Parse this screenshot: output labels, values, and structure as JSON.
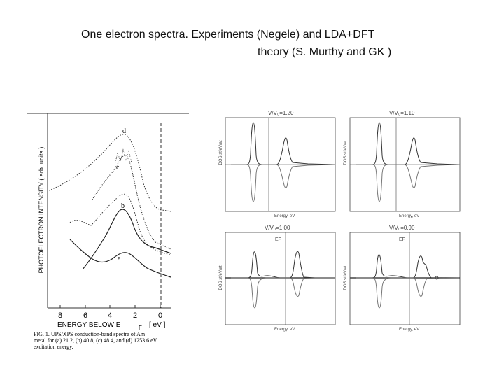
{
  "slide": {
    "title_line1": "One electron spectra. Experiments (Negele) and LDA+DFT",
    "title_line2": "theory  (S. Murthy and GK )"
  },
  "experiment": {
    "ylabel": "PHOTOELECTRON  INTENSITY  ( arb. units )",
    "xticks": [
      "8",
      "6",
      "4",
      "2",
      "0"
    ],
    "xlabel_left": "ENERGY   BELOW   E",
    "xlabel_sub": "F",
    "xlabel_unit": "[ eV ]",
    "curve_labels": [
      "d",
      "c",
      "b",
      "a"
    ],
    "caption_line1": "FIG. 1.  UPS/XPS conduction-band spectra of Am",
    "caption_line2": "metal for (a) 21.2, (b) 40.8, (c) 48.4, and (d) 1253.6 eV",
    "caption_line3": "excitation energy."
  },
  "theory": {
    "panel_titles": [
      "V/V₀=1.20",
      "V/V₀=1.10",
      "V/V₀=1.00",
      "V/V₀=0.90"
    ],
    "ylabel_top": "DOS st/eV/at",
    "ylabel_bottom": "DOS st/eV/at",
    "xlabel": "Energy, eV",
    "ef_label": "EF"
  }
}
